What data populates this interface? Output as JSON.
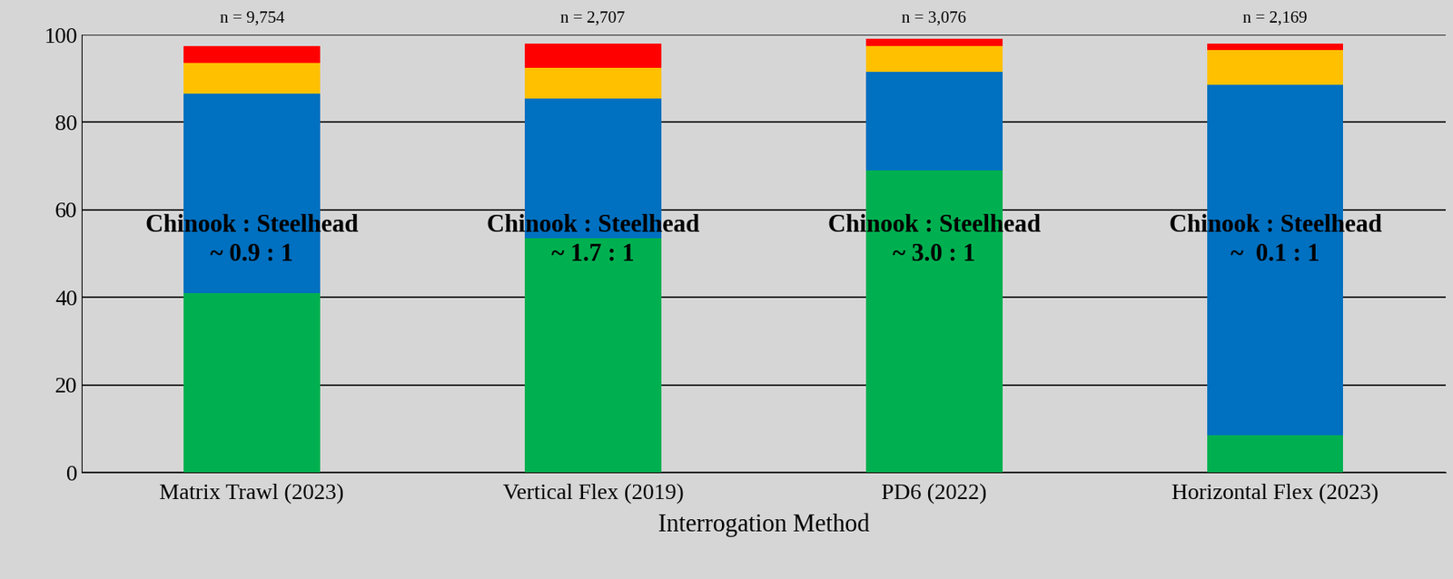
{
  "chart_data": {
    "type": "bar",
    "stacked": true,
    "x_label": "Interrogation Method",
    "categories": [
      "Matrix Trawl (2023)",
      "Vertical Flex (2019)",
      "PD6 (2022)",
      "Horizontal Flex (2023)"
    ],
    "series": [
      {
        "color": "#00b050",
        "values": [
          41,
          53.5,
          69,
          8.5
        ]
      },
      {
        "color": "#0070c0",
        "values": [
          45.5,
          32,
          22.5,
          80
        ]
      },
      {
        "color": "#ffc000",
        "values": [
          7,
          7,
          6,
          8
        ]
      },
      {
        "color": "#ff0000",
        "values": [
          4,
          5.5,
          1.5,
          1.5
        ]
      }
    ],
    "ylim": [
      0,
      100
    ],
    "yticks": [
      0,
      20,
      40,
      60,
      80,
      100
    ],
    "grid": true,
    "annotations": [
      {
        "category": "Matrix Trawl (2023)",
        "text": "n = 9,754"
      },
      {
        "category": "Vertical Flex (2019)",
        "text": "n = 2,707"
      },
      {
        "category": "PD6 (2022)",
        "text": "n = 3,076"
      },
      {
        "category": "Horizontal Flex (2023)",
        "text": "n = 2,169"
      },
      {
        "category": "Matrix Trawl (2023)",
        "text": "Chinook : Steelhead\n~ 0.9 : 1",
        "bold": true
      },
      {
        "category": "Vertical Flex (2019)",
        "text": "Chinook : Steelhead\n~ 1.7 : 1",
        "bold": true
      },
      {
        "category": "PD6 (2022)",
        "text": "Chinook : Steelhead\n~ 3.0 : 1",
        "bold": true
      },
      {
        "category": "Horizontal Flex (2023)",
        "text": "Chinook : Steelhead\n~  0.1 : 1",
        "bold": true
      }
    ]
  }
}
